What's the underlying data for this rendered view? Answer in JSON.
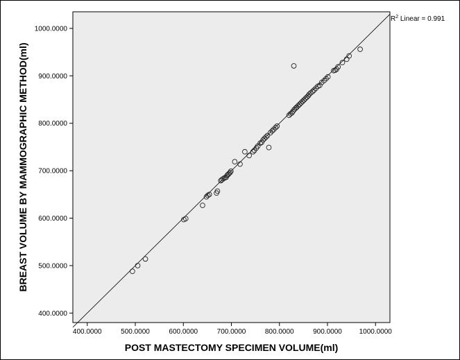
{
  "chart_data": {
    "type": "scatter",
    "xlabel": "POST MASTECTOMY SPECIMEN VOLUME(ml)",
    "ylabel": "BREAST VOLUME BY MAMMOGRAPHIC METHOD(ml)",
    "xlim": [
      370,
      1030
    ],
    "ylim": [
      380,
      1035
    ],
    "x_ticks": [
      "400.0000",
      "500.0000",
      "600.0000",
      "700.0000",
      "800.0000",
      "900.0000",
      "1000.0000"
    ],
    "y_ticks": [
      "400.0000",
      "500.0000",
      "600.0000",
      "700.0000",
      "800.0000",
      "900.0000",
      "1000.0000"
    ],
    "fit_line": {
      "label_prefix": "R",
      "label_sup": "2",
      "label_suffix": " Linear = 0.991",
      "from": [
        370,
        370
      ],
      "to": [
        1030,
        1030
      ]
    },
    "grid": false,
    "background": "#ececec",
    "points": [
      [
        494,
        488
      ],
      [
        505,
        500
      ],
      [
        521,
        514
      ],
      [
        601,
        597
      ],
      [
        605,
        599
      ],
      [
        640,
        627
      ],
      [
        648,
        645
      ],
      [
        651,
        648
      ],
      [
        654,
        650
      ],
      [
        669,
        653
      ],
      [
        671,
        657
      ],
      [
        678,
        679
      ],
      [
        680,
        681
      ],
      [
        683,
        683
      ],
      [
        686,
        685
      ],
      [
        689,
        686
      ],
      [
        691,
        690
      ],
      [
        693,
        692
      ],
      [
        695,
        694
      ],
      [
        697,
        696
      ],
      [
        699,
        699
      ],
      [
        707,
        719
      ],
      [
        718,
        714
      ],
      [
        728,
        740
      ],
      [
        737,
        732
      ],
      [
        745,
        740
      ],
      [
        748,
        743
      ],
      [
        752,
        748
      ],
      [
        755,
        752
      ],
      [
        760,
        758
      ],
      [
        763,
        760
      ],
      [
        766,
        765
      ],
      [
        769,
        768
      ],
      [
        772,
        771
      ],
      [
        775,
        774
      ],
      [
        778,
        749
      ],
      [
        781,
        780
      ],
      [
        785,
        784
      ],
      [
        788,
        787
      ],
      [
        792,
        791
      ],
      [
        795,
        794
      ],
      [
        820,
        817
      ],
      [
        823,
        820
      ],
      [
        826,
        822
      ],
      [
        828,
        825
      ],
      [
        830,
        921
      ],
      [
        831,
        829
      ],
      [
        834,
        832
      ],
      [
        836,
        834
      ],
      [
        839,
        837
      ],
      [
        842,
        840
      ],
      [
        845,
        843
      ],
      [
        848,
        846
      ],
      [
        851,
        849
      ],
      [
        854,
        852
      ],
      [
        857,
        855
      ],
      [
        860,
        858
      ],
      [
        862,
        861
      ],
      [
        865,
        864
      ],
      [
        869,
        867
      ],
      [
        872,
        870
      ],
      [
        876,
        874
      ],
      [
        880,
        878
      ],
      [
        884,
        880
      ],
      [
        888,
        886
      ],
      [
        893,
        890
      ],
      [
        897,
        894
      ],
      [
        901,
        898
      ],
      [
        913,
        911
      ],
      [
        916,
        912
      ],
      [
        919,
        914
      ],
      [
        922,
        919
      ],
      [
        931,
        928
      ],
      [
        940,
        935
      ],
      [
        945,
        942
      ],
      [
        968,
        956
      ]
    ]
  }
}
